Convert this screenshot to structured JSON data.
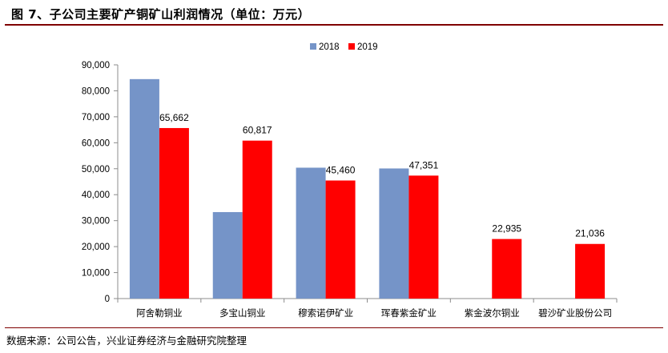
{
  "header": {
    "title": "图 7、子公司主要矿产铜矿山利润情况（单位：万元）"
  },
  "footer": {
    "source": "数据来源：公司公告，兴业证券经济与金融研究院整理"
  },
  "colors": {
    "series_2018": "#7594c8",
    "series_2019": "#ff0000",
    "title_rule": "#7f0000"
  },
  "chart_data": {
    "type": "bar",
    "title": "图 7、子公司主要矿产铜矿山利润情况（单位：万元）",
    "categories": [
      "阿舍勒铜业",
      "多宝山铜业",
      "穆索诺伊矿业",
      "珲春紫金矿业",
      "紫金波尔铜业",
      "碧沙矿业股份公司"
    ],
    "series": [
      {
        "name": "2018",
        "values": [
          84500,
          33300,
          50400,
          50100,
          null,
          null
        ]
      },
      {
        "name": "2019",
        "values": [
          65662,
          60817,
          45460,
          47351,
          22935,
          21036
        ]
      }
    ],
    "data_labels": {
      "2019": [
        "65,662",
        "60,817",
        "45,460",
        "47,351",
        "22,935",
        "21,036"
      ]
    },
    "y_ticks": [
      "0",
      "10,000",
      "20,000",
      "30,000",
      "40,000",
      "50,000",
      "60,000",
      "70,000",
      "80,000",
      "90,000"
    ],
    "ylim": [
      0,
      90000
    ],
    "xlabel": "",
    "ylabel": "",
    "legend": "top-center",
    "grid": false
  }
}
